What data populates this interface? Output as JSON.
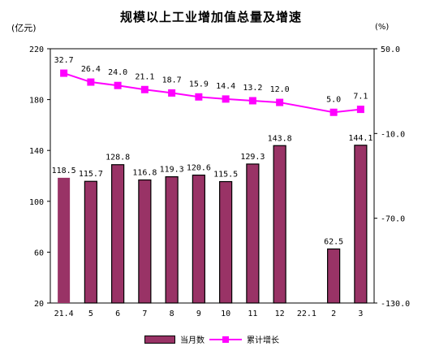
{
  "chart_data": {
    "type": "bar+line",
    "title": "规模以上工业增加值总量及增速",
    "left_axis": {
      "unit": "(亿元)",
      "ylim": [
        20,
        220
      ],
      "ticks": [
        20,
        60,
        100,
        140,
        180,
        220
      ]
    },
    "right_axis": {
      "unit": "(%)",
      "ylim": [
        -130,
        50
      ],
      "ticks": [
        "50.0",
        "-10.0",
        "-70.0",
        "-130.0"
      ]
    },
    "categories": [
      "21.4",
      "5",
      "6",
      "7",
      "8",
      "9",
      "10",
      "11",
      "12",
      "22.1",
      "2",
      "3"
    ],
    "series": [
      {
        "name": "当月数",
        "type": "bar",
        "axis": "left",
        "color": "#993366",
        "values": [
          118.5,
          115.7,
          128.8,
          116.8,
          119.3,
          120.6,
          115.5,
          129.3,
          143.8,
          null,
          62.5,
          144.1
        ],
        "labels": [
          "118.5",
          "115.7",
          "128.8",
          "116.8",
          "119.3",
          "120.6",
          "115.5",
          "129.3",
          "143.8",
          "",
          "62.5",
          "144.1"
        ]
      },
      {
        "name": "累计增长",
        "type": "line",
        "axis": "right",
        "color": "#ff00ff",
        "values": [
          32.7,
          26.4,
          24.0,
          21.1,
          18.7,
          15.9,
          14.4,
          13.2,
          12.0,
          null,
          5.0,
          7.1
        ],
        "labels": [
          "32.7",
          "26.4",
          "24.0",
          "21.1",
          "18.7",
          "15.9",
          "14.4",
          "13.2",
          "12.0",
          "",
          "5.0",
          "7.1"
        ]
      }
    ],
    "legend": {
      "position": "bottom",
      "bar_label": "当月数",
      "line_label": "累计增长"
    },
    "grid": false
  }
}
